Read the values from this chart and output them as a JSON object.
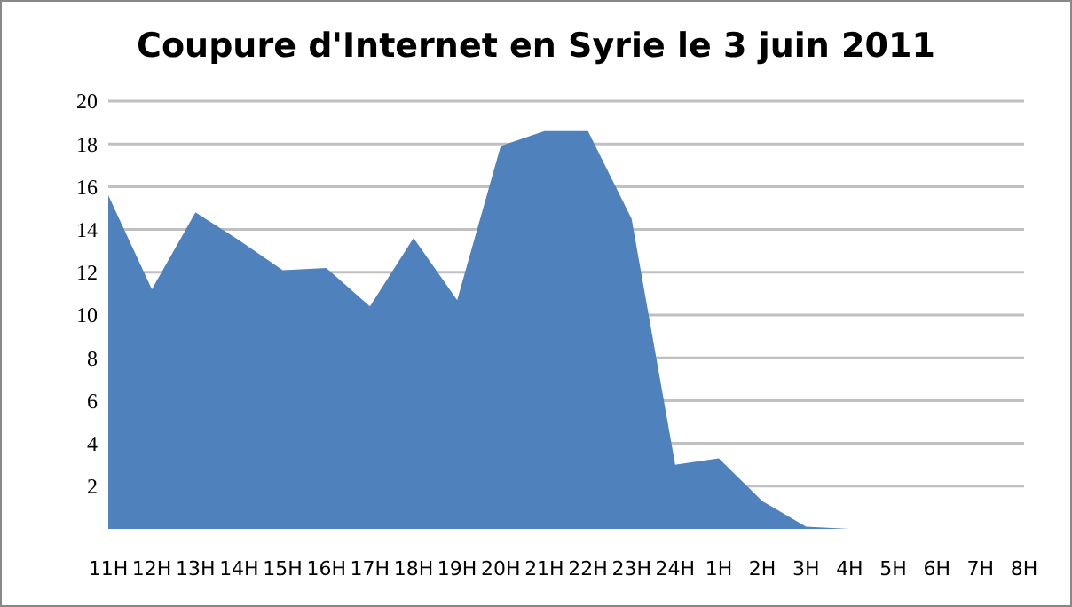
{
  "chart_data": {
    "type": "area",
    "title": "Coupure d'Internet en Syrie le 3 juin 2011",
    "categories": [
      "11H",
      "12H",
      "13H",
      "14H",
      "15H",
      "16H",
      "17H",
      "18H",
      "19H",
      "20H",
      "21H",
      "22H",
      "23H",
      "24H",
      "1H",
      "2H",
      "3H",
      "4H",
      "5H",
      "6H",
      "7H",
      "8H"
    ],
    "values": [
      15.6,
      11.2,
      14.8,
      13.5,
      12.1,
      12.2,
      10.4,
      13.6,
      10.7,
      17.9,
      18.6,
      18.6,
      14.5,
      3.0,
      3.3,
      1.3,
      0.1,
      0,
      0,
      0,
      0,
      0
    ],
    "color": "#4f81bd",
    "ylim": [
      0,
      20
    ],
    "yticks": [
      2,
      4,
      6,
      8,
      10,
      12,
      14,
      16,
      18,
      20
    ],
    "grid": "y"
  }
}
